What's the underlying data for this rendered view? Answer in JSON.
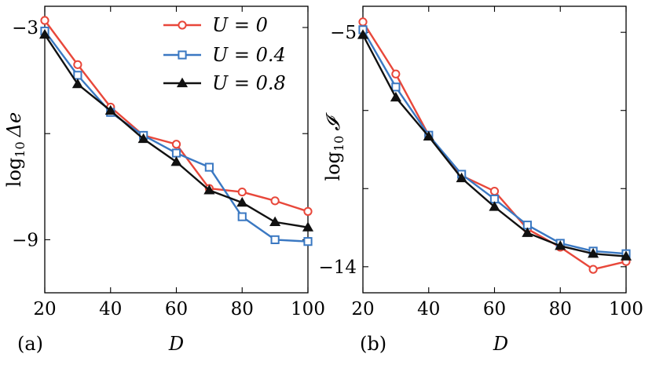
{
  "chart_data": [
    {
      "type": "line",
      "panel_label": "(a)",
      "xlabel": "D",
      "ylabel_prefix": "log",
      "ylabel_sub": "10",
      "ylabel_symbol": "Δe",
      "xlim": [
        20,
        100
      ],
      "ylim": [
        -10.5,
        -2.4
      ],
      "xticks": [
        20,
        40,
        60,
        80,
        100
      ],
      "yticks": [
        -3,
        -6,
        -9
      ],
      "yticklabels": [
        "−3",
        "",
        "−9"
      ],
      "grid": false,
      "legend": "top-right",
      "x": [
        20,
        30,
        40,
        50,
        60,
        70,
        80,
        90,
        100
      ],
      "series": [
        {
          "name": "U = 0",
          "color": "#e8473a",
          "marker": "circle",
          "values": [
            -2.8,
            -4.05,
            -5.25,
            -6.05,
            -6.3,
            -7.55,
            -7.65,
            -7.9,
            -8.2
          ]
        },
        {
          "name": "U = 0.4",
          "color": "#3a78c2",
          "marker": "square",
          "values": [
            -3.1,
            -4.35,
            -5.4,
            -6.05,
            -6.55,
            -6.95,
            -8.35,
            -9.0,
            -9.05
          ]
        },
        {
          "name": "U = 0.8",
          "color": "#111111",
          "marker": "triangle",
          "values": [
            -3.2,
            -4.6,
            -5.35,
            -6.15,
            -6.8,
            -7.6,
            -7.95,
            -8.5,
            -8.65
          ]
        }
      ]
    },
    {
      "type": "line",
      "panel_label": "(b)",
      "xlabel": "D",
      "ylabel_prefix": "log",
      "ylabel_sub": "10",
      "ylabel_symbol": "𝓘",
      "xlim": [
        20,
        100
      ],
      "ylim": [
        -15.0,
        -4.0
      ],
      "xticks": [
        20,
        40,
        60,
        80,
        100
      ],
      "yticks": [
        -5,
        -8,
        -11,
        -14
      ],
      "yticklabels": [
        "−5",
        "",
        "",
        "−14"
      ],
      "grid": false,
      "legend": "none",
      "x": [
        20,
        30,
        40,
        50,
        60,
        70,
        80,
        90,
        100
      ],
      "series": [
        {
          "name": "U = 0",
          "color": "#e8473a",
          "marker": "circle",
          "values": [
            -4.6,
            -6.6,
            -8.95,
            -10.5,
            -11.1,
            -12.55,
            -13.25,
            -14.1,
            -13.8
          ]
        },
        {
          "name": "U = 0.4",
          "color": "#3a78c2",
          "marker": "square",
          "values": [
            -4.9,
            -7.1,
            -8.95,
            -10.45,
            -11.4,
            -12.4,
            -13.1,
            -13.4,
            -13.5
          ]
        },
        {
          "name": "U = 0.8",
          "color": "#111111",
          "marker": "triangle",
          "values": [
            -5.1,
            -7.5,
            -9.0,
            -10.6,
            -11.7,
            -12.7,
            -13.2,
            -13.5,
            -13.6
          ]
        }
      ]
    }
  ]
}
